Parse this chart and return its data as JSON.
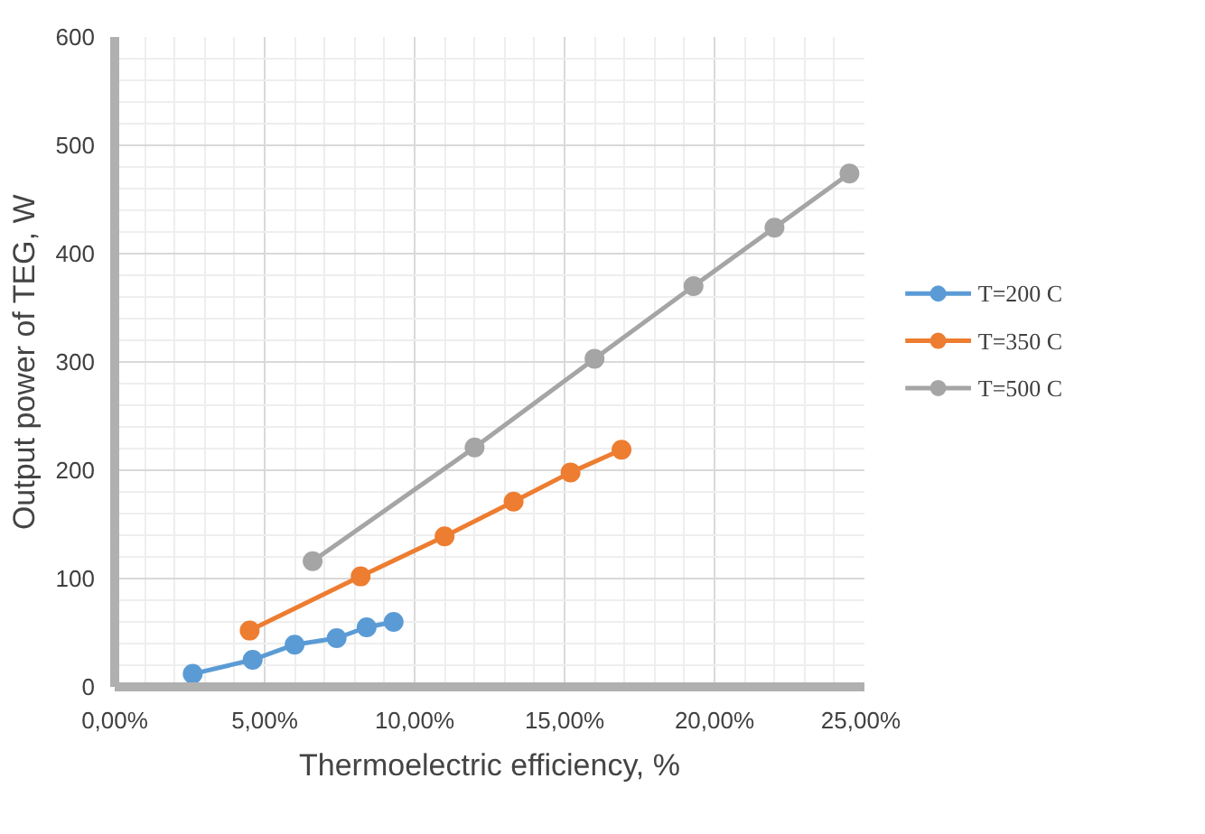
{
  "chart_data": {
    "type": "line",
    "xlabel": "Thermoelectric efficiency, %",
    "ylabel": "Output power of TEG, W",
    "xlim": [
      0,
      25
    ],
    "xticks": [
      {
        "value": 0,
        "label": "0,00%"
      },
      {
        "value": 5,
        "label": "5,00%"
      },
      {
        "value": 10,
        "label": "10,00%"
      },
      {
        "value": 15,
        "label": "15,00%"
      },
      {
        "value": 20,
        "label": "20,00%"
      },
      {
        "value": 25,
        "label": "25,00%"
      }
    ],
    "ylim": [
      0,
      600
    ],
    "yticks": [
      0,
      100,
      200,
      300,
      400,
      500,
      600
    ],
    "grid": true,
    "legend": "right",
    "marker": "circle",
    "line_style": "solid",
    "series": [
      {
        "name": "T=200 C",
        "color": "#5b9bd5",
        "x": [
          2.6,
          4.6,
          6.0,
          7.4,
          8.4,
          9.3
        ],
        "values": [
          12,
          25,
          39,
          45,
          55,
          60
        ]
      },
      {
        "name": "T=350 C",
        "color": "#ed7d31",
        "x": [
          4.5,
          8.2,
          11.0,
          13.3,
          15.2,
          16.9
        ],
        "values": [
          52,
          102,
          139,
          171,
          198,
          219
        ]
      },
      {
        "name": "T=500 C",
        "color": "#a5a5a5",
        "x": [
          6.6,
          12.0,
          16.0,
          19.3,
          22.0,
          24.5
        ],
        "values": [
          116,
          221,
          303,
          370,
          424,
          474
        ]
      }
    ]
  }
}
